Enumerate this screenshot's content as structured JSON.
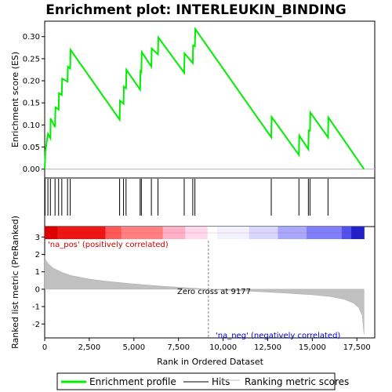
{
  "title": "Enrichment plot: INTERLEUKIN_BINDING",
  "colors": {
    "es_line": "#00ee00",
    "hits": "#000000",
    "metric_fill": "#c0c0c0",
    "zero_line": "#808080",
    "pos_text": "#cc0000",
    "neg_text": "#0000cc"
  },
  "chart_data": [
    {
      "type": "line",
      "name": "enrichment-score-panel",
      "ylabel": "Enrichment score (ES)",
      "ylim": [
        -0.02,
        0.335
      ],
      "xlim": [
        0,
        18500
      ],
      "yticks": [
        0.0,
        0.05,
        0.1,
        0.15,
        0.2,
        0.25,
        0.3
      ],
      "ytick_labels": [
        "0.00",
        "0.05",
        "0.10",
        "0.15",
        "0.20",
        "0.25",
        "0.30"
      ],
      "series": [
        {
          "name": "Enrichment profile",
          "x": [
            0,
            20,
            40,
            180,
            320,
            330,
            580,
            600,
            780,
            800,
            960,
            980,
            1280,
            1300,
            1430,
            1450,
            4200,
            4220,
            4420,
            4440,
            4560,
            4580,
            5350,
            5370,
            5420,
            5440,
            5980,
            6000,
            6350,
            6370,
            7820,
            7840,
            8300,
            8320,
            8420,
            8440,
            12700,
            12720,
            14250,
            14270,
            14780,
            14800,
            14870,
            14890,
            15880,
            15900,
            17900
          ],
          "y": [
            0.0,
            0.02,
            0.04,
            0.08,
            0.07,
            0.115,
            0.095,
            0.14,
            0.135,
            0.172,
            0.168,
            0.205,
            0.198,
            0.232,
            0.228,
            0.27,
            0.112,
            0.155,
            0.148,
            0.187,
            0.183,
            0.225,
            0.18,
            0.222,
            0.22,
            0.265,
            0.232,
            0.273,
            0.26,
            0.298,
            0.218,
            0.262,
            0.24,
            0.28,
            0.278,
            0.317,
            0.072,
            0.118,
            0.032,
            0.076,
            0.045,
            0.088,
            0.087,
            0.128,
            0.072,
            0.117,
            0.0
          ]
        }
      ]
    },
    {
      "type": "hits",
      "name": "hits-panel",
      "xlim": [
        0,
        18500
      ],
      "hits": [
        20,
        180,
        320,
        580,
        780,
        960,
        1280,
        1430,
        4200,
        4420,
        4560,
        5350,
        5420,
        5980,
        6350,
        7820,
        8300,
        8420,
        12700,
        14250,
        14780,
        14870,
        15880
      ]
    },
    {
      "type": "area",
      "name": "ranked-list-metric-panel",
      "xlabel": "Rank in Ordered Dataset",
      "ylabel": "Ranked list metric (PreRanked)",
      "xlim": [
        0,
        18500
      ],
      "ylim": [
        -2.8,
        3.6
      ],
      "xticks": [
        0,
        2500,
        5000,
        7500,
        10000,
        12500,
        15000,
        17500
      ],
      "xtick_labels": [
        "0",
        "2,500",
        "5,000",
        "7,500",
        "10,000",
        "12,500",
        "15,000",
        "17,500"
      ],
      "yticks": [
        -2,
        -1,
        0,
        1,
        2,
        3
      ],
      "ytick_labels": [
        "-2",
        "-1",
        "0",
        "1",
        "2",
        "3"
      ],
      "series": [
        {
          "name": "Ranking metric scores",
          "x": [
            0,
            50,
            200,
            500,
            1000,
            1500,
            2500,
            3500,
            5000,
            6500,
            8000,
            9177,
            10500,
            12000,
            13500,
            15000,
            16000,
            16800,
            17300,
            17600,
            17800,
            17900
          ],
          "y": [
            1.9,
            1.7,
            1.45,
            1.2,
            0.95,
            0.78,
            0.58,
            0.45,
            0.3,
            0.18,
            0.08,
            0.0,
            -0.07,
            -0.14,
            -0.22,
            -0.32,
            -0.42,
            -0.58,
            -0.8,
            -1.05,
            -1.5,
            -2.6
          ]
        }
      ],
      "zero_cross": 9177,
      "annotations": {
        "pos": "'na_pos' (positively correlated)",
        "neg": "'na_neg' (negatively correlated)",
        "zero": "Zero cross at 9177"
      }
    }
  ],
  "legend": {
    "items": [
      {
        "label": "Enrichment profile",
        "color": "#00ee00"
      },
      {
        "label": "Hits",
        "color": "#000000"
      },
      {
        "label": "Ranking metric scores",
        "color": "#c0c0c0"
      }
    ]
  }
}
